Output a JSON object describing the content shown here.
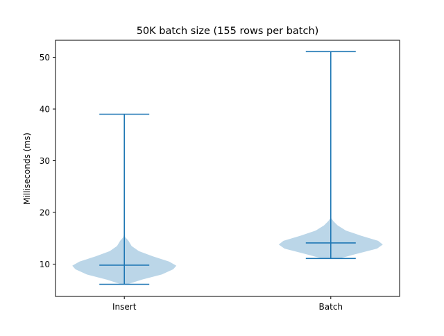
{
  "chart_data": {
    "type": "violin",
    "title": "50K batch size (155 rows per batch)",
    "xlabel": "",
    "ylabel": "Milliseconds (ms)",
    "categories": [
      "Insert",
      "Batch"
    ],
    "ylim": [
      3.75,
      53.3
    ],
    "yticks": [
      10,
      20,
      30,
      40,
      50
    ],
    "grid": false,
    "colors": {
      "line": "#1f77b4",
      "fill": "#1f77b4"
    },
    "series": [
      {
        "category": "Insert",
        "min": 6.1,
        "max": 39.0,
        "median": 9.8,
        "density": [
          [
            6.1,
            0.06
          ],
          [
            7.0,
            0.34
          ],
          [
            8.0,
            0.72
          ],
          [
            9.0,
            0.94
          ],
          [
            9.7,
            1.0
          ],
          [
            10.5,
            0.86
          ],
          [
            11.5,
            0.55
          ],
          [
            12.5,
            0.28
          ],
          [
            13.5,
            0.14
          ],
          [
            14.5,
            0.08
          ],
          [
            15.2,
            0.02
          ],
          [
            16.0,
            0.0
          ]
        ]
      },
      {
        "category": "Batch",
        "min": 11.1,
        "max": 51.1,
        "median": 14.1,
        "density": [
          [
            11.1,
            0.17
          ],
          [
            12.0,
            0.5
          ],
          [
            13.0,
            0.89
          ],
          [
            13.8,
            1.0
          ],
          [
            14.5,
            0.91
          ],
          [
            15.5,
            0.58
          ],
          [
            16.5,
            0.29
          ],
          [
            17.5,
            0.13
          ],
          [
            18.3,
            0.05
          ],
          [
            19.0,
            0.0
          ]
        ]
      }
    ]
  }
}
